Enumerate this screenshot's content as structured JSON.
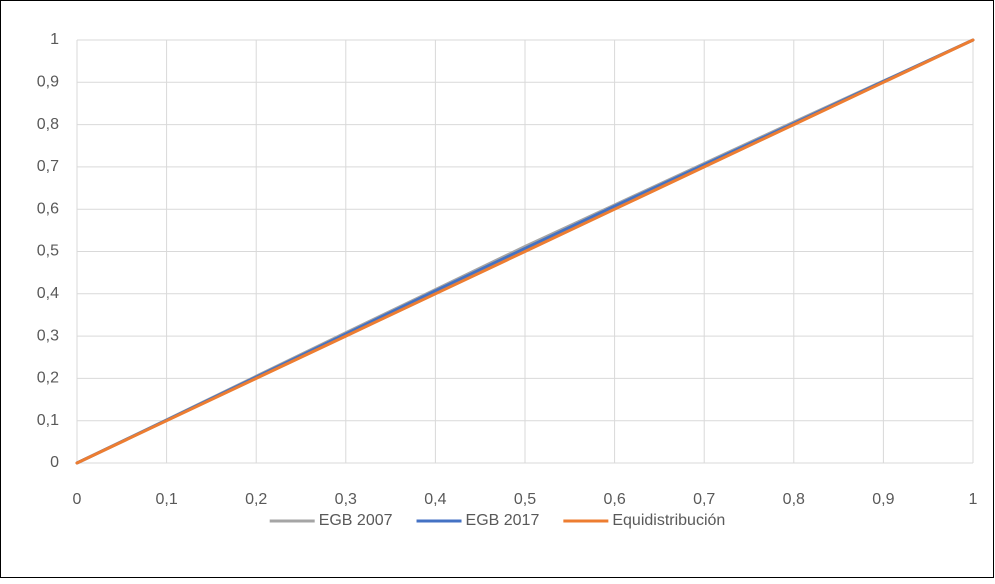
{
  "chart_data": {
    "type": "line",
    "x": [
      0,
      0.1,
      0.2,
      0.3,
      0.4,
      0.5,
      0.6,
      0.7,
      0.8,
      0.9,
      1
    ],
    "series": [
      {
        "name": "EGB 2007",
        "color": "#a5a5a5",
        "values": [
          0,
          0.102,
          0.205,
          0.308,
          0.41,
          0.512,
          0.61,
          0.708,
          0.806,
          0.903,
          1
        ]
      },
      {
        "name": "EGB 2017",
        "color": "#4472c4",
        "values": [
          0,
          0.101,
          0.203,
          0.305,
          0.407,
          0.507,
          0.607,
          0.705,
          0.803,
          0.902,
          1
        ]
      },
      {
        "name": "Equidistribución",
        "color": "#ed7d31",
        "values": [
          0,
          0.1,
          0.2,
          0.3,
          0.4,
          0.5,
          0.6,
          0.7,
          0.8,
          0.9,
          1
        ]
      }
    ],
    "xlim": [
      0,
      1
    ],
    "ylim": [
      0,
      1
    ],
    "xticks": [
      0,
      {
        "value": 0.1,
        "label": "0,1"
      },
      {
        "value": 0.2,
        "label": "0,2"
      },
      {
        "value": 0.3,
        "label": "0,3"
      },
      {
        "value": 0.4,
        "label": "0,4"
      },
      {
        "value": 0.5,
        "label": "0,5"
      },
      {
        "value": 0.6,
        "label": "0,6"
      },
      {
        "value": 0.7,
        "label": "0,7"
      },
      {
        "value": 0.8,
        "label": "0,8"
      },
      {
        "value": 0.9,
        "label": "0,9"
      },
      1
    ],
    "yticks": [
      0,
      {
        "value": 0.1,
        "label": "0,1"
      },
      {
        "value": 0.2,
        "label": "0,2"
      },
      {
        "value": 0.3,
        "label": "0,3"
      },
      {
        "value": 0.4,
        "label": "0,4"
      },
      {
        "value": 0.5,
        "label": "0,5"
      },
      {
        "value": 0.6,
        "label": "0,6"
      },
      {
        "value": 0.7,
        "label": "0,7"
      },
      {
        "value": 0.8,
        "label": "0,8"
      },
      {
        "value": 0.9,
        "label": "0,9"
      },
      1
    ],
    "grid": true,
    "legend": "bottom"
  }
}
